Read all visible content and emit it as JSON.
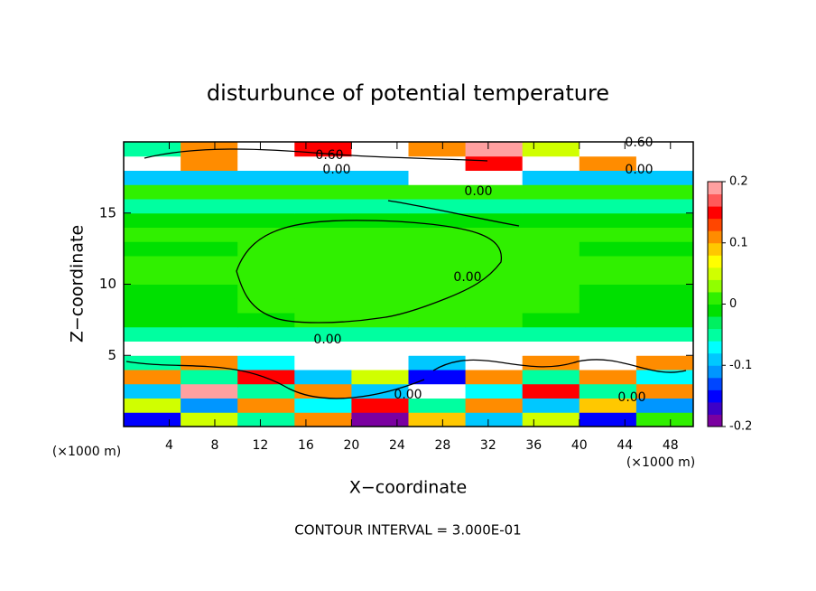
{
  "chart_data": {
    "type": "heatmap",
    "title": "disturbunce of potential temperature",
    "x_label": "X−coordinate",
    "y_label": "Z−coordinate",
    "x_unit_left": "(×1000 m)",
    "x_unit_right": "(×1000 m)",
    "footnote": "CONTOUR INTERVAL = 3.000E-01",
    "xlim": [
      0,
      50
    ],
    "ylim": [
      0,
      20
    ],
    "xticks": [
      4,
      8,
      12,
      16,
      20,
      24,
      28,
      32,
      36,
      40,
      44,
      48
    ],
    "yticks": [
      5,
      10,
      15
    ],
    "xbins": [
      0,
      5,
      10,
      15,
      20,
      25,
      30,
      35,
      40,
      45,
      50
    ],
    "ybins": [
      0,
      1,
      2,
      3,
      4,
      5,
      6,
      7,
      8,
      9,
      10,
      11,
      12,
      13,
      14,
      15,
      16,
      17,
      18,
      19,
      20
    ],
    "z": [
      [
        -0.15,
        0.05,
        -0.05,
        0.1,
        -0.2,
        0.08,
        -0.1,
        0.05,
        -0.15,
        0.02
      ],
      [
        0.05,
        -0.12,
        0.1,
        -0.08,
        0.15,
        -0.05,
        0.12,
        -0.1,
        0.08,
        -0.12
      ],
      [
        -0.1,
        0.2,
        -0.05,
        0.12,
        -0.1,
        0.25,
        -0.08,
        0.15,
        -0.05,
        0.1
      ],
      [
        0.1,
        -0.05,
        0.15,
        -0.1,
        0.05,
        -0.15,
        0.1,
        -0.05,
        0.12,
        -0.08
      ],
      [
        -0.05,
        0.1,
        -0.08,
        0.25,
        0.25,
        -0.1,
        0.25,
        0.1,
        0.25,
        0.1
      ],
      [
        0.25,
        0.25,
        0.25,
        0.25,
        0.25,
        0.25,
        0.25,
        0.25,
        0.25,
        0.25
      ],
      [
        -0.04,
        -0.04,
        -0.04,
        -0.04,
        -0.04,
        -0.04,
        -0.04,
        -0.04,
        -0.04,
        -0.04
      ],
      [
        -0.02,
        -0.02,
        -0.01,
        0,
        0,
        0,
        0,
        -0.01,
        -0.02,
        -0.02
      ],
      [
        -0.01,
        -0.01,
        0,
        0,
        0,
        0,
        0,
        0,
        -0.01,
        -0.01
      ],
      [
        -0.02,
        -0.01,
        0,
        0,
        0,
        0,
        0,
        0,
        -0.01,
        -0.02
      ],
      [
        0,
        0,
        0,
        0,
        0,
        0,
        0,
        0,
        0,
        0
      ],
      [
        0,
        0,
        0,
        0,
        0,
        0,
        0,
        0,
        0,
        0
      ],
      [
        -0.01,
        -0.01,
        0,
        0,
        0,
        0,
        0,
        0,
        -0.01,
        -0.01
      ],
      [
        0,
        0,
        0,
        0,
        0,
        0,
        0,
        0,
        0,
        0
      ],
      [
        -0.02,
        -0.02,
        -0.01,
        -0.01,
        -0.01,
        -0.01,
        -0.01,
        -0.01,
        -0.02,
        -0.02
      ],
      [
        -0.06,
        -0.06,
        -0.06,
        -0.06,
        -0.06,
        -0.06,
        -0.06,
        -0.06,
        -0.06,
        -0.06
      ],
      [
        0,
        0,
        0,
        0,
        0,
        0,
        0,
        0,
        0,
        0
      ],
      [
        -0.1,
        -0.1,
        -0.1,
        -0.1,
        -0.1,
        0.25,
        0.25,
        -0.1,
        -0.1,
        -0.1
      ],
      [
        0.25,
        0.1,
        0.25,
        0.25,
        0.25,
        0.25,
        0.15,
        0.25,
        0.1,
        0.25
      ],
      [
        -0.05,
        0.1,
        0.25,
        0.15,
        0.25,
        0.1,
        0.2,
        0.05,
        0.25,
        0.25
      ]
    ],
    "clim": [
      -0.2,
      0.2
    ],
    "cticks": [
      -0.2,
      -0.1,
      0,
      0.1,
      0.2
    ],
    "colormap": [
      "#7a00a0",
      "#3c00c8",
      "#0000ff",
      "#0046ff",
      "#0096ff",
      "#00c8ff",
      "#00ffff",
      "#00ffa0",
      "#00f060",
      "#00e000",
      "#30f000",
      "#90ff00",
      "#d0ff00",
      "#ffff00",
      "#ffc800",
      "#ff8c00",
      "#ff4600",
      "#ff0000",
      "#ff5a5a",
      "#ffa0a0"
    ],
    "over_color": "#ffffff",
    "contour_labels": [
      "0.60",
      "0.00",
      "0.60",
      "0.00",
      "0.00",
      "0.00",
      "0.00",
      "0.00",
      "0.00"
    ]
  }
}
